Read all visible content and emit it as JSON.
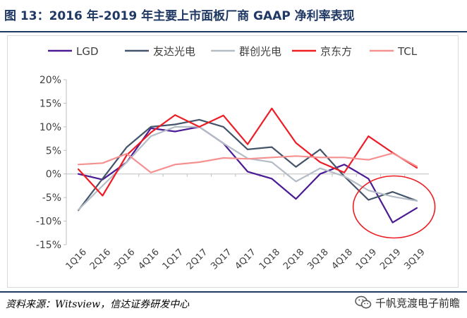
{
  "header": {
    "title": "图 13：2016 年-2019 年主要上市面板厂商 GAAP 净利率表现"
  },
  "footer": {
    "source": "资料来源：Witsview，信达证券研发中心",
    "watermark": "千帆竞渡电子前瞻"
  },
  "chart_data": {
    "type": "line",
    "title": "",
    "xlabel": "",
    "ylabel": "",
    "ylim": [
      -0.15,
      0.2
    ],
    "yticks": [
      {
        "value": 0.2,
        "label": "20%"
      },
      {
        "value": 0.15,
        "label": "15%"
      },
      {
        "value": 0.1,
        "label": "10%"
      },
      {
        "value": 0.05,
        "label": "5%"
      },
      {
        "value": 0.0,
        "label": "0%"
      },
      {
        "value": -0.05,
        "label": "-5%"
      },
      {
        "value": -0.1,
        "label": "-10%"
      },
      {
        "value": -0.15,
        "label": "-15%"
      }
    ],
    "categories": [
      "1Q16",
      "2Q16",
      "3Q16",
      "4Q16",
      "1Q17",
      "2Q17",
      "3Q17",
      "4Q17",
      "1Q18",
      "2Q18",
      "3Q18",
      "4Q18",
      "1Q19",
      "2Q19",
      "3Q19"
    ],
    "grid": false,
    "legend_position": "top",
    "series": [
      {
        "name": "LGD",
        "color": "#4b1b94",
        "values": [
          0.0,
          -0.012,
          0.025,
          0.097,
          0.09,
          0.1,
          0.065,
          0.005,
          -0.01,
          -0.053,
          0.0,
          0.02,
          -0.01,
          -0.103,
          -0.072
        ]
      },
      {
        "name": "友达光电",
        "color": "#44546a",
        "values": [
          -0.077,
          -0.01,
          0.057,
          0.1,
          0.105,
          0.115,
          0.1,
          0.052,
          0.057,
          0.015,
          0.052,
          -0.005,
          -0.055,
          -0.038,
          -0.057
        ]
      },
      {
        "name": "群创光电",
        "color": "#b4bcc6",
        "values": [
          -0.076,
          -0.025,
          0.025,
          0.08,
          0.1,
          0.1,
          0.065,
          0.033,
          0.025,
          -0.016,
          0.012,
          -0.005,
          -0.035,
          -0.048,
          -0.057
        ]
      },
      {
        "name": "京东方",
        "color": "#ee1c24",
        "values": [
          0.01,
          -0.046,
          0.04,
          0.088,
          0.125,
          0.1,
          0.124,
          0.063,
          0.139,
          0.066,
          0.025,
          0.003,
          0.08,
          0.045,
          0.013
        ]
      },
      {
        "name": "TCL",
        "color": "#f59191",
        "values": [
          0.02,
          0.023,
          0.043,
          0.003,
          0.02,
          0.025,
          0.034,
          0.032,
          0.035,
          0.038,
          0.035,
          0.035,
          0.03,
          0.044,
          0.016
        ]
      }
    ],
    "annotation": "red ellipse highlighting 1Q19-3Q19 declines",
    "annotation_color": "#ee1c24"
  }
}
